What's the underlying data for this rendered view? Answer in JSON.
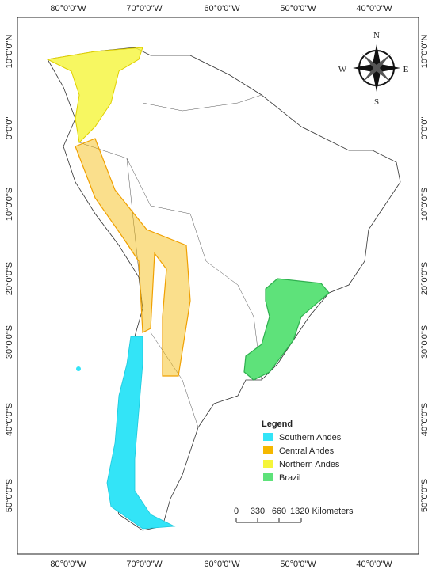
{
  "map": {
    "top_labels": [
      "80°0'0\"W",
      "70°0'0\"W",
      "60°0'0\"W",
      "50°0'0\"W",
      "40°0'0\"W"
    ],
    "bottom_labels": [
      "80°0'0\"W",
      "70°0'0\"W",
      "60°0'0\"W",
      "50°0'0\"W",
      "40°0'0\"W"
    ],
    "left_labels": [
      "10°0'0\"N",
      "0°0'0\"",
      "10°0'0\"S",
      "20°0'0\"S",
      "30°0'0\"S",
      "40°0'0\"S",
      "50°0'0\"S"
    ],
    "right_labels": [
      "10°0'0\"N",
      "0°0'0\"",
      "10°0'0\"S",
      "20°0'0\"S",
      "30°0'0\"S",
      "40°0'0\"S",
      "50°0'0\"S"
    ],
    "compass": {
      "n": "N",
      "s": "S",
      "e": "E",
      "w": "W"
    },
    "legend": {
      "title": "Legend",
      "items": [
        {
          "label": "Southern Andes",
          "color": "#33e4f7"
        },
        {
          "label": "Central Andes",
          "color": "#f5b800"
        },
        {
          "label": "Northern Andes",
          "color": "#f5f53a"
        },
        {
          "label": "Brazil",
          "color": "#5ee27a"
        }
      ]
    },
    "scale_bar": {
      "labels": [
        "0",
        "330",
        "660",
        "1320 Kilometers"
      ]
    }
  }
}
